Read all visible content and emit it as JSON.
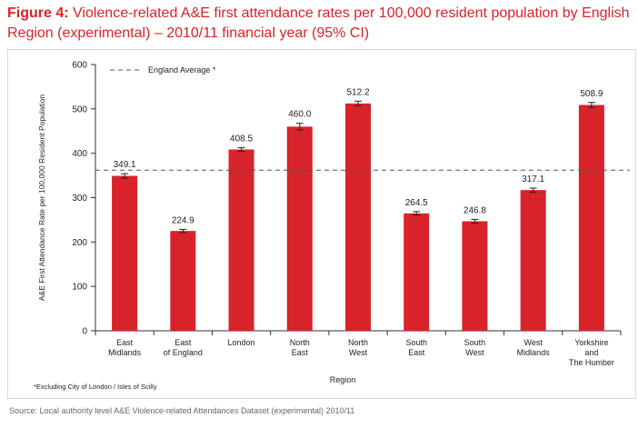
{
  "title": {
    "figure": "Figure 4:",
    "text": "Violence-related A&E first attendance rates per 100,000 resident population by English Region (experimental) – 2010/11 financial year (95% CI)"
  },
  "footnote": "*Excluding City of London / Isles of Scilly",
  "source": "Source: Local authority level A&E Violence-related Attendances Dataset (experimental) 2010/11",
  "colors": {
    "bar": "#d8232a",
    "title": "#d8232a",
    "reference": "#555555"
  },
  "chart_data": {
    "type": "bar",
    "categories": [
      [
        "East",
        "Midlands"
      ],
      [
        "East",
        "of England"
      ],
      [
        "London"
      ],
      [
        "North",
        "East"
      ],
      [
        "North",
        "West"
      ],
      [
        "South",
        "East"
      ],
      [
        "South",
        "West"
      ],
      [
        "West",
        "Midlands"
      ],
      [
        "Yorkshire",
        "and",
        "The Humber"
      ]
    ],
    "values": [
      349.1,
      224.9,
      408.5,
      460.0,
      512.2,
      264.5,
      246.8,
      317.1,
      508.9
    ],
    "value_labels": [
      "349.1",
      "224.9",
      "408.5",
      "460.0",
      "512.2",
      "264.5",
      "246.8",
      "317.1",
      "508.9"
    ],
    "ci_lower": [
      344.0,
      221.5,
      404.5,
      452.5,
      507.0,
      261.0,
      242.5,
      312.5,
      503.0
    ],
    "ci_upper": [
      354.0,
      228.5,
      412.5,
      467.5,
      517.5,
      268.5,
      251.0,
      321.5,
      514.5
    ],
    "reference_line": {
      "label": "England Average *",
      "value": 362
    },
    "xlabel": "Region",
    "ylabel": "A&E First Attendance Rate per 100,000 Resident Population",
    "ylim": [
      0,
      600
    ],
    "yticks": [
      0,
      100,
      200,
      300,
      400,
      500,
      600
    ],
    "grid": false,
    "legend": "top-left"
  }
}
